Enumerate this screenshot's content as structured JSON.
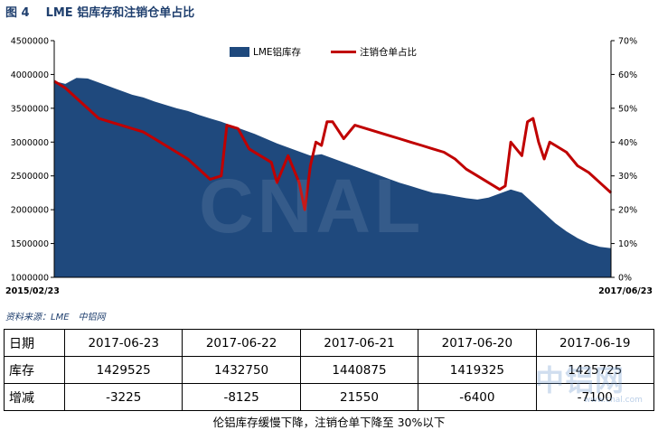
{
  "figure": {
    "number": "图 4",
    "title": "LME 铝库存和注销仓单占比"
  },
  "chart_data": {
    "type": "area+line",
    "x_start_label": "2015/02/23",
    "x_end_label": "2017/06/23",
    "left_axis": {
      "min": 1000000,
      "max": 4500000,
      "step": 500000,
      "ticks": [
        "1000000",
        "1500000",
        "2000000",
        "2500000",
        "3000000",
        "3500000",
        "4000000",
        "4500000"
      ]
    },
    "right_axis": {
      "min": 0,
      "max": 70,
      "step": 10,
      "ticks": [
        "0%",
        "10%",
        "20%",
        "30%",
        "40%",
        "50%",
        "60%",
        "70%"
      ]
    },
    "legend": {
      "placement": "top-center",
      "area_label": "LME铝库存",
      "line_label": "注销仓单占比"
    },
    "colors": {
      "area": "#1f497d",
      "line": "#c00000",
      "axis": "#000000"
    },
    "series": [
      {
        "name": "LME铝库存",
        "axis": "left",
        "kind": "area",
        "points": [
          [
            0,
            3900000
          ],
          [
            0.01,
            3880000
          ],
          [
            0.02,
            3860000
          ],
          [
            0.04,
            3950000
          ],
          [
            0.06,
            3940000
          ],
          [
            0.08,
            3880000
          ],
          [
            0.1,
            3820000
          ],
          [
            0.12,
            3760000
          ],
          [
            0.14,
            3700000
          ],
          [
            0.16,
            3660000
          ],
          [
            0.18,
            3600000
          ],
          [
            0.2,
            3550000
          ],
          [
            0.22,
            3500000
          ],
          [
            0.24,
            3460000
          ],
          [
            0.26,
            3400000
          ],
          [
            0.28,
            3350000
          ],
          [
            0.3,
            3300000
          ],
          [
            0.32,
            3240000
          ],
          [
            0.34,
            3180000
          ],
          [
            0.36,
            3120000
          ],
          [
            0.38,
            3050000
          ],
          [
            0.4,
            2980000
          ],
          [
            0.42,
            2920000
          ],
          [
            0.44,
            2860000
          ],
          [
            0.46,
            2800000
          ],
          [
            0.48,
            2820000
          ],
          [
            0.5,
            2760000
          ],
          [
            0.52,
            2700000
          ],
          [
            0.54,
            2640000
          ],
          [
            0.56,
            2580000
          ],
          [
            0.58,
            2520000
          ],
          [
            0.6,
            2460000
          ],
          [
            0.62,
            2400000
          ],
          [
            0.64,
            2350000
          ],
          [
            0.66,
            2300000
          ],
          [
            0.68,
            2250000
          ],
          [
            0.7,
            2230000
          ],
          [
            0.72,
            2200000
          ],
          [
            0.74,
            2170000
          ],
          [
            0.76,
            2150000
          ],
          [
            0.78,
            2180000
          ],
          [
            0.8,
            2240000
          ],
          [
            0.82,
            2300000
          ],
          [
            0.84,
            2250000
          ],
          [
            0.86,
            2100000
          ],
          [
            0.88,
            1950000
          ],
          [
            0.9,
            1800000
          ],
          [
            0.92,
            1680000
          ],
          [
            0.94,
            1580000
          ],
          [
            0.96,
            1500000
          ],
          [
            0.98,
            1450000
          ],
          [
            1,
            1430000
          ]
        ]
      },
      {
        "name": "注销仓单占比",
        "axis": "right",
        "kind": "line",
        "points": [
          [
            0,
            58
          ],
          [
            0.02,
            56
          ],
          [
            0.04,
            53
          ],
          [
            0.06,
            50
          ],
          [
            0.08,
            47
          ],
          [
            0.1,
            46
          ],
          [
            0.12,
            45
          ],
          [
            0.14,
            44
          ],
          [
            0.16,
            43
          ],
          [
            0.18,
            41
          ],
          [
            0.2,
            39
          ],
          [
            0.22,
            37
          ],
          [
            0.24,
            35
          ],
          [
            0.26,
            32
          ],
          [
            0.28,
            29
          ],
          [
            0.3,
            30
          ],
          [
            0.31,
            45
          ],
          [
            0.33,
            44
          ],
          [
            0.35,
            38
          ],
          [
            0.37,
            36
          ],
          [
            0.39,
            34
          ],
          [
            0.4,
            28
          ],
          [
            0.42,
            36
          ],
          [
            0.44,
            28
          ],
          [
            0.45,
            20
          ],
          [
            0.46,
            33
          ],
          [
            0.47,
            40
          ],
          [
            0.48,
            39
          ],
          [
            0.49,
            46
          ],
          [
            0.5,
            46
          ],
          [
            0.52,
            41
          ],
          [
            0.54,
            45
          ],
          [
            0.56,
            44
          ],
          [
            0.58,
            43
          ],
          [
            0.6,
            42
          ],
          [
            0.62,
            41
          ],
          [
            0.64,
            40
          ],
          [
            0.66,
            39
          ],
          [
            0.68,
            38
          ],
          [
            0.7,
            37
          ],
          [
            0.72,
            35
          ],
          [
            0.74,
            32
          ],
          [
            0.76,
            30
          ],
          [
            0.78,
            28
          ],
          [
            0.8,
            26
          ],
          [
            0.81,
            27
          ],
          [
            0.82,
            40
          ],
          [
            0.84,
            36
          ],
          [
            0.85,
            46
          ],
          [
            0.86,
            47
          ],
          [
            0.87,
            40
          ],
          [
            0.88,
            35
          ],
          [
            0.89,
            40
          ],
          [
            0.9,
            39
          ],
          [
            0.92,
            37
          ],
          [
            0.94,
            33
          ],
          [
            0.96,
            31
          ],
          [
            0.98,
            28
          ],
          [
            1,
            25
          ]
        ]
      }
    ]
  },
  "source": "资料来源：LME　中铝网",
  "table": {
    "rows": [
      {
        "label": "日期",
        "cells": [
          "2017-06-23",
          "2017-06-22",
          "2017-06-21",
          "2017-06-20",
          "2017-06-19"
        ]
      },
      {
        "label": "库存",
        "cells": [
          "1429525",
          "1432750",
          "1440875",
          "1419325",
          "1425725"
        ]
      },
      {
        "label": "增减",
        "cells": [
          "-3225",
          "-8125",
          "21550",
          "-6400",
          "-7100"
        ]
      }
    ]
  },
  "caption": "伦铝库存缓慢下降，注销仓单下降至 30%以下",
  "watermark": "CNAL",
  "logo": {
    "text": "中铝网",
    "url": "www.cnal.com"
  }
}
